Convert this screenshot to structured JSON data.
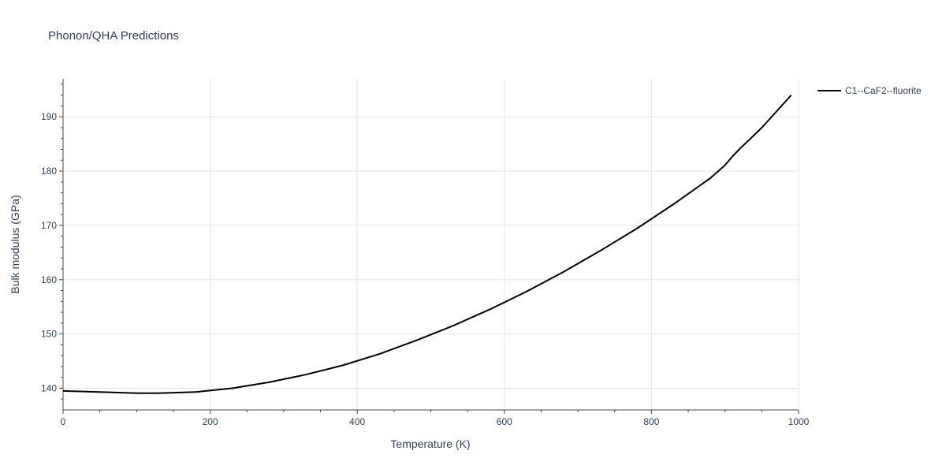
{
  "chart_data": {
    "type": "line",
    "title": "Phonon/QHA Predictions",
    "xlabel": "Temperature (K)",
    "ylabel": "Bulk modulus (GPa)",
    "xlim": [
      0,
      1000
    ],
    "ylim": [
      136,
      197
    ],
    "xticks": [
      0,
      200,
      400,
      600,
      800,
      1000
    ],
    "yticks": [
      140,
      150,
      160,
      170,
      180,
      190
    ],
    "grid": true,
    "legend": "top-right",
    "series": [
      {
        "name": "C1--CaF2--fluorite",
        "color": "#000000",
        "x": [
          0,
          50,
          100,
          130,
          180,
          230,
          280,
          330,
          380,
          430,
          480,
          530,
          580,
          630,
          680,
          730,
          780,
          830,
          880,
          900,
          910,
          920,
          950,
          990
        ],
        "y": [
          139.5,
          139.3,
          139.1,
          139.1,
          139.3,
          140.0,
          141.1,
          142.5,
          144.2,
          146.3,
          148.8,
          151.5,
          154.5,
          157.8,
          161.4,
          165.3,
          169.4,
          173.9,
          178.7,
          181.1,
          182.7,
          184.1,
          188.0,
          194.0
        ]
      }
    ]
  }
}
